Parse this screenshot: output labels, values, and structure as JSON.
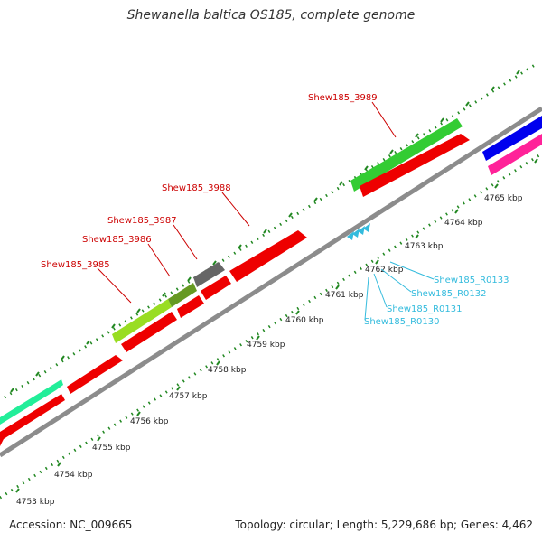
{
  "title": "Shewanella baltica OS185, complete genome",
  "accession": "Accession: NC_009665",
  "summary": "Topology: circular; Length: 5,229,686 bp; Genes: 4,462",
  "colors": {
    "backbone": "#8c8c8c",
    "gene_red": "#ee0000",
    "gene_green": "#33cc33",
    "gene_lime": "#99dd22",
    "gene_olive": "#669922",
    "gene_gray": "#666666",
    "gene_teal": "#22ee99",
    "gene_blue": "#0000ee",
    "gene_pink": "#ff2299",
    "tick": "#228822",
    "gene_label": "#cc0000",
    "rna_label": "#33bbdd"
  },
  "scale_labels": [
    "4753 kbp",
    "4754 kbp",
    "4755 kbp",
    "4756 kbp",
    "4757 kbp",
    "4758 kbp",
    "4759 kbp",
    "4760 kbp",
    "4761 kbp",
    "4762 kbp",
    "4763 kbp",
    "4764 kbp",
    "4765 kbp"
  ],
  "gene_labels": [
    "Shew185_3985",
    "Shew185_3986",
    "Shew185_3987",
    "Shew185_3988",
    "Shew185_3989"
  ],
  "rna_labels": [
    "Shew185_R0133",
    "Shew185_R0132",
    "Shew185_R0131",
    "Shew185_R0130"
  ]
}
